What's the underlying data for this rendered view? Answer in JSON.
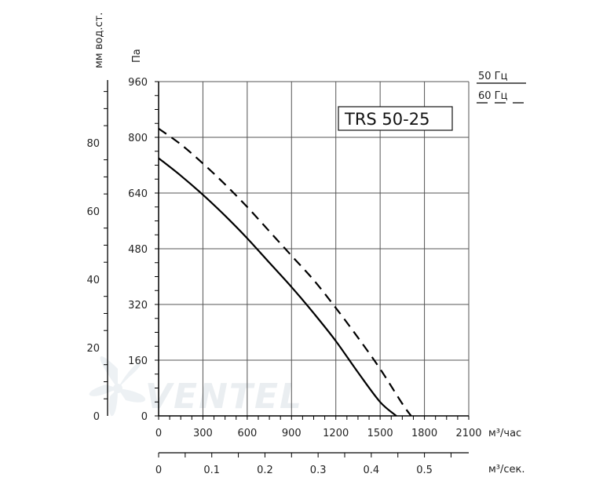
{
  "chart_data": {
    "type": "line",
    "title": "TRS 50-25",
    "watermark": "VENTEL",
    "x_axis": {
      "unit": "м³/час",
      "ticks": [
        0,
        300,
        600,
        900,
        1200,
        1500,
        1800,
        2100
      ],
      "range": [
        0,
        2100
      ]
    },
    "x2_axis": {
      "unit": "м³/сек.",
      "tick_labels": [
        "0",
        "0.1",
        "0.2",
        "0.3",
        "0.4",
        "0.5"
      ],
      "ticks": [
        0,
        0.1,
        0.2,
        0.3,
        0.4,
        0.5
      ],
      "range": [
        0,
        0.5833
      ]
    },
    "y_axis": {
      "unit": "Па",
      "ticks": [
        0,
        160,
        320,
        480,
        640,
        800,
        960
      ],
      "range": [
        0,
        960
      ]
    },
    "y2_axis": {
      "unit": "мм вод.ст.",
      "ticks": [
        0,
        20,
        40,
        60,
        80
      ],
      "range": [
        0,
        97.9
      ]
    },
    "grid": true,
    "legend_position": "top-right",
    "series": [
      {
        "name": "50 Гц",
        "style": "solid",
        "color": "#000000",
        "x": [
          0,
          150,
          300,
          450,
          600,
          750,
          900,
          1050,
          1200,
          1350,
          1500,
          1610
        ],
        "y": [
          740,
          690,
          635,
          575,
          510,
          440,
          370,
          295,
          215,
          125,
          40,
          0
        ]
      },
      {
        "name": "60 Гц",
        "style": "dashed",
        "color": "#000000",
        "x": [
          0,
          150,
          300,
          450,
          600,
          750,
          900,
          1050,
          1200,
          1350,
          1500,
          1650,
          1710
        ],
        "y": [
          825,
          780,
          725,
          665,
          600,
          530,
          460,
          390,
          310,
          225,
          135,
          35,
          0
        ]
      }
    ]
  }
}
